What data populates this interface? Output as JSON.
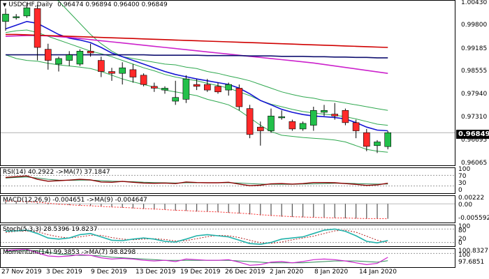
{
  "header": {
    "symbol_label": "USDCHF,Daily",
    "ohlc": [
      "0.96474",
      "0.96894",
      "0.96400",
      "0.96849"
    ]
  },
  "last_price": "0.96849",
  "price_axis": [
    "1.00430",
    "0.99800",
    "0.99185",
    "0.98555",
    "0.97940",
    "0.97310",
    "0.96695",
    "0.96065"
  ],
  "indicators": {
    "rsi": {
      "title": "RSI(14) 40.2922  ->MA(7) 37.1847",
      "ticks": [
        "100",
        "70",
        "30",
        "0"
      ]
    },
    "macd": {
      "title": "MACD(12,26,9) -0.004651 ->MA(9) -0.004647",
      "ticks": [
        "0.00222",
        "0.00",
        "-0.005592"
      ]
    },
    "stoch": {
      "title": "Stoch(5,3,3) 28.5396 19.8237",
      "ticks": [
        "100",
        "80",
        "20",
        "0"
      ]
    },
    "momentum": {
      "title": "Momentum(14) 99.3853  ->MA(7) 98.8298",
      "ticks": [
        "100.8327",
        "100",
        "97.6851"
      ]
    }
  },
  "dates": [
    "27 Nov 2019",
    "3 Dec 2019",
    "9 Dec 2019",
    "13 Dec 2019",
    "19 Dec 2019",
    "26 Dec 2019",
    "2 Jan 2020",
    "8 Jan 2020",
    "14 Jan 2020"
  ],
  "colors": {
    "bull": "#22c04a",
    "bear": "#ff2a2a",
    "envelope": "#2fa84f",
    "blue_ma": "#1414d4",
    "magenta_ma": "#cc22cc",
    "red_ma": "#d00000",
    "navy_ma": "#101070",
    "rsi_line": "#8b0000",
    "rsi_ma": "#2e8b57",
    "stoch_main": "#20b2aa",
    "stoch_signal": "#b22222"
  },
  "chart_data": {
    "type": "candlestick",
    "symbol": "USDCHF",
    "timeframe": "Daily",
    "ylim": [
      0.9595,
      1.0043
    ],
    "candles": [
      {
        "o": 0.9985,
        "h": 1.002,
        "l": 0.996,
        "c": 1.0005
      },
      {
        "o": 0.9995,
        "h": 1.0005,
        "l": 0.999,
        "c": 0.9998
      },
      {
        "o": 1.0,
        "h": 1.0035,
        "l": 0.9995,
        "c": 1.0022
      },
      {
        "o": 1.002,
        "h": 1.003,
        "l": 0.988,
        "c": 0.9915
      },
      {
        "o": 0.991,
        "h": 0.9925,
        "l": 0.9855,
        "c": 0.988
      },
      {
        "o": 0.987,
        "h": 0.989,
        "l": 0.985,
        "c": 0.9885
      },
      {
        "o": 0.988,
        "h": 0.9905,
        "l": 0.9865,
        "c": 0.9895
      },
      {
        "o": 0.987,
        "h": 0.991,
        "l": 0.9865,
        "c": 0.9905
      },
      {
        "o": 0.9905,
        "h": 0.9925,
        "l": 0.989,
        "c": 0.99
      },
      {
        "o": 0.988,
        "h": 0.989,
        "l": 0.9835,
        "c": 0.985
      },
      {
        "o": 0.985,
        "h": 0.986,
        "l": 0.9825,
        "c": 0.9845
      },
      {
        "o": 0.9845,
        "h": 0.9875,
        "l": 0.9815,
        "c": 0.986
      },
      {
        "o": 0.9855,
        "h": 0.987,
        "l": 0.982,
        "c": 0.9835
      },
      {
        "o": 0.984,
        "h": 0.9845,
        "l": 0.981,
        "c": 0.9815
      },
      {
        "o": 0.981,
        "h": 0.982,
        "l": 0.9795,
        "c": 0.9805
      },
      {
        "o": 0.98,
        "h": 0.981,
        "l": 0.979,
        "c": 0.9805
      },
      {
        "o": 0.977,
        "h": 0.9825,
        "l": 0.976,
        "c": 0.978
      },
      {
        "o": 0.9775,
        "h": 0.984,
        "l": 0.9765,
        "c": 0.983
      },
      {
        "o": 0.9815,
        "h": 0.983,
        "l": 0.98,
        "c": 0.981
      },
      {
        "o": 0.9815,
        "h": 0.983,
        "l": 0.9795,
        "c": 0.98
      },
      {
        "o": 0.981,
        "h": 0.982,
        "l": 0.979,
        "c": 0.9795
      },
      {
        "o": 0.98,
        "h": 0.982,
        "l": 0.9785,
        "c": 0.9815
      },
      {
        "o": 0.9805,
        "h": 0.9815,
        "l": 0.9745,
        "c": 0.9755
      },
      {
        "o": 0.975,
        "h": 0.976,
        "l": 0.967,
        "c": 0.968
      },
      {
        "o": 0.97,
        "h": 0.9715,
        "l": 0.965,
        "c": 0.969
      },
      {
        "o": 0.969,
        "h": 0.975,
        "l": 0.9685,
        "c": 0.973
      },
      {
        "o": 0.9725,
        "h": 0.9745,
        "l": 0.972,
        "c": 0.9728
      },
      {
        "o": 0.9715,
        "h": 0.972,
        "l": 0.969,
        "c": 0.9695
      },
      {
        "o": 0.9695,
        "h": 0.9715,
        "l": 0.969,
        "c": 0.971
      },
      {
        "o": 0.9705,
        "h": 0.9755,
        "l": 0.969,
        "c": 0.9745
      },
      {
        "o": 0.974,
        "h": 0.976,
        "l": 0.973,
        "c": 0.9745
      },
      {
        "o": 0.9735,
        "h": 0.9765,
        "l": 0.972,
        "c": 0.973
      },
      {
        "o": 0.9745,
        "h": 0.975,
        "l": 0.9705,
        "c": 0.9712
      },
      {
        "o": 0.9712,
        "h": 0.972,
        "l": 0.967,
        "c": 0.969
      },
      {
        "o": 0.9685,
        "h": 0.9695,
        "l": 0.9635,
        "c": 0.9648
      },
      {
        "o": 0.965,
        "h": 0.9665,
        "l": 0.963,
        "c": 0.966
      },
      {
        "o": 0.96474,
        "h": 0.96894,
        "l": 0.964,
        "c": 0.96849
      }
    ],
    "series": [
      {
        "key": "envelope_upper",
        "color": "envelope",
        "values": [
          1.005,
          1.006,
          1.0065,
          1.006,
          1.0055,
          1.004,
          1.001,
          0.998,
          0.995,
          0.9925,
          0.9905,
          0.989,
          0.9885,
          0.988,
          0.9875,
          0.987,
          0.9868,
          0.9862,
          0.9858,
          0.985,
          0.9845,
          0.9838,
          0.9832,
          0.9825,
          0.9815,
          0.9805,
          0.9795,
          0.9788,
          0.9782,
          0.9778,
          0.9772,
          0.977,
          0.9765,
          0.976,
          0.9755,
          0.975,
          0.9745
        ]
      },
      {
        "key": "envelope_mid",
        "color": "envelope",
        "values": [
          0.9955,
          0.996,
          0.9962,
          0.9955,
          0.9945,
          0.9935,
          0.9925,
          0.9915,
          0.9905,
          0.9898,
          0.989,
          0.988,
          0.987,
          0.986,
          0.9852,
          0.9842,
          0.9835,
          0.983,
          0.9825,
          0.9818,
          0.9812,
          0.9805,
          0.9795,
          0.9785,
          0.9772,
          0.9762,
          0.9755,
          0.9748,
          0.9742,
          0.9738,
          0.9735,
          0.9732,
          0.9728,
          0.9722,
          0.9715,
          0.9708,
          0.9705
        ]
      },
      {
        "key": "envelope_lower",
        "color": "envelope",
        "values": [
          0.9895,
          0.9885,
          0.988,
          0.9878,
          0.9872,
          0.9868,
          0.9865,
          0.9862,
          0.9858,
          0.985,
          0.984,
          0.983,
          0.9822,
          0.9815,
          0.9808,
          0.98,
          0.9795,
          0.979,
          0.9785,
          0.9775,
          0.9768,
          0.976,
          0.9745,
          0.9725,
          0.9705,
          0.9688,
          0.9678,
          0.9675,
          0.9672,
          0.967,
          0.9668,
          0.9665,
          0.966,
          0.965,
          0.964,
          0.9635,
          0.9632
        ]
      },
      {
        "key": "ma_blue",
        "color": "blue_ma",
        "values": [
          0.9965,
          0.9975,
          0.9985,
          0.998,
          0.9965,
          0.995,
          0.994,
          0.9935,
          0.9928,
          0.9915,
          0.99,
          0.989,
          0.988,
          0.987,
          0.986,
          0.985,
          0.9842,
          0.9836,
          0.983,
          0.9825,
          0.982,
          0.9815,
          0.9805,
          0.979,
          0.9772,
          0.976,
          0.9748,
          0.974,
          0.9734,
          0.973,
          0.9728,
          0.9726,
          0.9722,
          0.9712,
          0.97,
          0.9692,
          0.969
        ]
      },
      {
        "key": "ma_magenta",
        "color": "magenta_ma",
        "values": [
          0.9945,
          0.9946,
          0.9947,
          0.9947,
          0.9946,
          0.9944,
          0.9942,
          0.9939,
          0.9936,
          0.9933,
          0.993,
          0.9927,
          0.9924,
          0.9921,
          0.9918,
          0.9915,
          0.9912,
          0.9909,
          0.9906,
          0.9903,
          0.99,
          0.9897,
          0.9894,
          0.9891,
          0.9888,
          0.9885,
          0.9882,
          0.9879,
          0.9876,
          0.9873,
          0.9869,
          0.9865,
          0.9861,
          0.9857,
          0.9853,
          0.9849,
          0.9845
        ]
      },
      {
        "key": "ma_red",
        "color": "red_ma",
        "values": [
          0.995,
          0.995,
          0.9949,
          0.9948,
          0.9947,
          0.9946,
          0.9945,
          0.9944,
          0.9943,
          0.9942,
          0.9941,
          0.994,
          0.9939,
          0.9938,
          0.9937,
          0.9936,
          0.9935,
          0.9934,
          0.9933,
          0.9932,
          0.9931,
          0.993,
          0.9929,
          0.9928,
          0.9927,
          0.9926,
          0.9925,
          0.9924,
          0.9923,
          0.9922,
          0.9921,
          0.992,
          0.9919,
          0.9918,
          0.9917,
          0.9916,
          0.9915
        ]
      },
      {
        "key": "ma_navy",
        "color": "navy_ma",
        "values": [
          0.9895,
          0.9895,
          0.9895,
          0.9895,
          0.9895,
          0.9895,
          0.9895,
          0.9895,
          0.9895,
          0.9895,
          0.9895,
          0.9895,
          0.9895,
          0.9895,
          0.9894,
          0.9894,
          0.9894,
          0.9894,
          0.9894,
          0.9893,
          0.9893,
          0.9893,
          0.9893,
          0.9892,
          0.9892,
          0.9892,
          0.9891,
          0.9891,
          0.9891,
          0.989,
          0.989,
          0.9889,
          0.9889,
          0.9888,
          0.9888,
          0.9887,
          0.9887
        ]
      }
    ],
    "rsi": {
      "ylim": [
        0,
        100
      ],
      "rsi": [
        62,
        65,
        68,
        55,
        48,
        50,
        52,
        55,
        53,
        45,
        44,
        47,
        44,
        41,
        40,
        41,
        39,
        45,
        43,
        42,
        42,
        44,
        37,
        31,
        33,
        38,
        39,
        37,
        39,
        43,
        43,
        42,
        39,
        36,
        32,
        34,
        40.2922
      ],
      "ma": [
        60,
        62,
        64,
        60,
        55,
        52,
        51,
        52,
        52,
        50,
        48,
        47,
        46,
        44,
        43,
        42,
        41,
        42,
        42,
        42,
        42,
        42,
        41,
        39,
        37,
        36,
        36,
        36,
        37,
        38,
        39,
        40,
        40,
        39,
        38,
        37,
        37.1847
      ]
    },
    "macd": {
      "ylim": [
        -0.005592,
        0.00222
      ],
      "histogram": [
        0.0008,
        0.0007,
        0.0006,
        0.0003,
        0.0,
        -0.0002,
        -0.0004,
        -0.0005,
        -0.0006,
        -0.0008,
        -0.001,
        -0.0012,
        -0.0014,
        -0.0016,
        -0.0018,
        -0.0019,
        -0.0021,
        -0.0022,
        -0.0024,
        -0.0025,
        -0.0026,
        -0.0028,
        -0.003,
        -0.0033,
        -0.0036,
        -0.0038,
        -0.004,
        -0.0041,
        -0.0042,
        -0.0043,
        -0.0043,
        -0.0044,
        -0.0045,
        -0.0046,
        -0.0047,
        -0.0047,
        -0.004651
      ],
      "signal": [
        0.0009,
        0.0008,
        0.0007,
        0.0005,
        0.0002,
        -0.0001,
        -0.0003,
        -0.0005,
        -0.0006,
        -0.0008,
        -0.001,
        -0.0011,
        -0.0013,
        -0.0015,
        -0.0016,
        -0.0018,
        -0.002,
        -0.0021,
        -0.0023,
        -0.0024,
        -0.0025,
        -0.0027,
        -0.0029,
        -0.0031,
        -0.0034,
        -0.0036,
        -0.0038,
        -0.004,
        -0.0041,
        -0.0042,
        -0.0043,
        -0.0044,
        -0.0044,
        -0.0045,
        -0.0046,
        -0.0046,
        -0.004647
      ]
    },
    "stoch": {
      "ylim": [
        0,
        100
      ],
      "main": [
        70,
        72,
        75,
        60,
        40,
        35,
        40,
        55,
        60,
        45,
        30,
        28,
        35,
        40,
        35,
        25,
        22,
        35,
        50,
        55,
        50,
        45,
        30,
        15,
        12,
        20,
        35,
        40,
        45,
        60,
        75,
        80,
        70,
        50,
        25,
        18,
        28.5396
      ],
      "signal": [
        65,
        70,
        72,
        68,
        55,
        45,
        40,
        45,
        52,
        52,
        42,
        35,
        32,
        35,
        37,
        33,
        27,
        28,
        37,
        46,
        52,
        50,
        42,
        30,
        19,
        16,
        22,
        32,
        40,
        48,
        60,
        72,
        75,
        66,
        48,
        30,
        19.8237
      ]
    },
    "momentum": {
      "ylim": [
        97.6851,
        100.8327
      ],
      "momentum": [
        100.5,
        100.6,
        100.7,
        100.1,
        99.6,
        99.5,
        99.6,
        99.8,
        99.7,
        99.3,
        99.1,
        99.2,
        99.1,
        98.9,
        98.8,
        98.9,
        98.7,
        99.1,
        99.0,
        98.9,
        98.9,
        99.0,
        98.6,
        98.1,
        98.2,
        98.6,
        98.7,
        98.5,
        98.7,
        99.0,
        99.1,
        99.0,
        98.8,
        98.5,
        98.2,
        98.4,
        99.3853
      ],
      "ma": [
        100.3,
        100.4,
        100.5,
        100.4,
        100.2,
        99.9,
        99.8,
        99.7,
        99.7,
        99.6,
        99.4,
        99.3,
        99.2,
        99.1,
        99.0,
        98.9,
        98.9,
        98.9,
        98.9,
        98.9,
        98.9,
        98.9,
        98.8,
        98.7,
        98.6,
        98.5,
        98.5,
        98.5,
        98.5,
        98.6,
        98.7,
        98.8,
        98.8,
        98.8,
        98.7,
        98.6,
        98.8298
      ]
    }
  }
}
